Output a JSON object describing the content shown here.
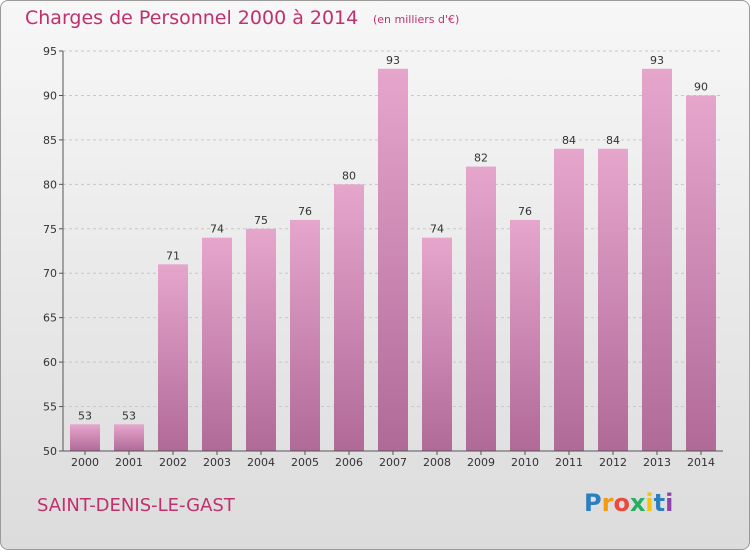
{
  "chart_data": {
    "type": "bar",
    "title": "Charges de Personnel 2000 à 2014",
    "subtitle": "(en milliers d'€)",
    "categories": [
      "2000",
      "2001",
      "2002",
      "2003",
      "2004",
      "2005",
      "2006",
      "2007",
      "2008",
      "2009",
      "2010",
      "2011",
      "2012",
      "2013",
      "2014"
    ],
    "values": [
      53,
      53,
      71,
      74,
      75,
      76,
      80,
      93,
      74,
      82,
      76,
      84,
      84,
      93,
      90
    ],
    "ylim": [
      50,
      95
    ],
    "yticks": [
      50,
      55,
      60,
      65,
      70,
      75,
      80,
      85,
      90,
      95
    ],
    "grid": true,
    "bar_color_top": "#e6a6cc",
    "bar_color_bottom": "#b06a98"
  },
  "commune": "SAINT-DENIS-LE-GAST",
  "logo": {
    "letters": [
      "P",
      "r",
      "o",
      "x",
      "i",
      "t",
      "i"
    ],
    "colors": [
      "#2a7fc1",
      "#f39c12",
      "#e74c3c",
      "#27ae60",
      "#f1c40f",
      "#2a7fc1",
      "#8e44ad"
    ]
  }
}
